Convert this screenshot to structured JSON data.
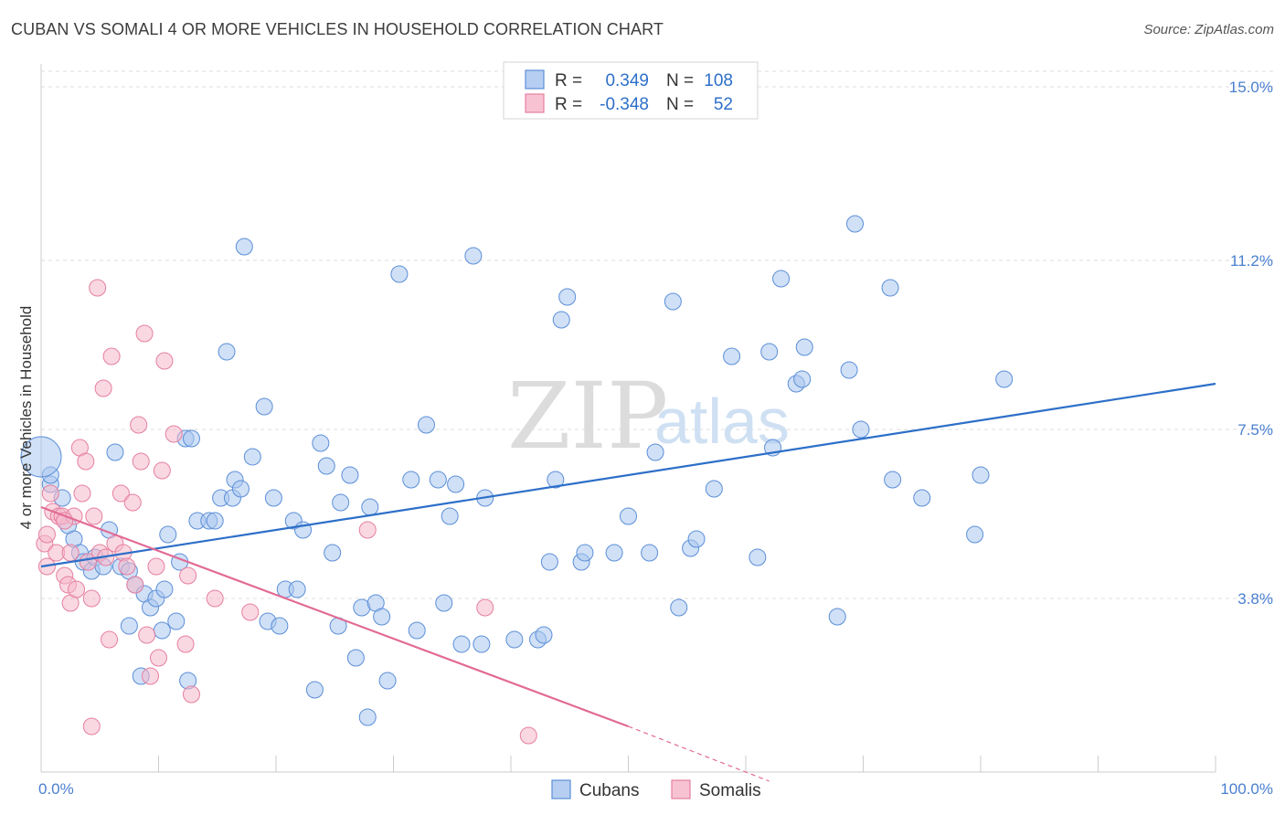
{
  "title": "CUBAN VS SOMALI 4 OR MORE VEHICLES IN HOUSEHOLD CORRELATION CHART",
  "source": "Source: ZipAtlas.com",
  "watermark": {
    "part1": "ZIP",
    "part2": "atlas"
  },
  "legend_top": [
    {
      "r_label": "R =",
      "r_value": "0.349",
      "n_label": "N =",
      "n_value": "108",
      "color": "#a9c6ee",
      "stroke": "#5b8fd8"
    },
    {
      "r_label": "R =",
      "r_value": "-0.348",
      "n_label": "N =",
      "n_value": "52",
      "color": "#f6b8cb",
      "stroke": "#e57fa0"
    }
  ],
  "chart_data": {
    "type": "scatter",
    "title": "CUBAN VS SOMALI 4 OR MORE VEHICLES IN HOUSEHOLD CORRELATION CHART",
    "xlabel": "",
    "ylabel": "4 or more Vehicles in Household",
    "xlim": [
      0,
      100
    ],
    "ylim": [
      0,
      15.5
    ],
    "x_tick_labels": [
      "0.0%",
      "100.0%"
    ],
    "y_ticks": [
      3.8,
      7.5,
      11.2,
      15.0
    ],
    "y_tick_labels": [
      "3.8%",
      "7.5%",
      "11.2%",
      "15.0%"
    ],
    "grid": true,
    "legend_bottom": [
      "Cubans",
      "Somalis"
    ],
    "series": [
      {
        "name": "Cubans",
        "color": "#a9c6ee",
        "stroke": "#5b8fd8",
        "line_color": "#2d6fc8",
        "trend": {
          "x": [
            0,
            100
          ],
          "y": [
            4.5,
            8.5
          ]
        },
        "points": [
          [
            0.8,
            6.3
          ],
          [
            0.8,
            6.5
          ],
          [
            1.8,
            6.0
          ],
          [
            2.3,
            5.4
          ],
          [
            2.8,
            5.1
          ],
          [
            3.3,
            4.8
          ],
          [
            3.6,
            4.6
          ],
          [
            4.3,
            4.4
          ],
          [
            4.6,
            4.7
          ],
          [
            5.3,
            4.5
          ],
          [
            5.8,
            5.3
          ],
          [
            6.3,
            7.0
          ],
          [
            6.8,
            4.5
          ],
          [
            7.5,
            4.4
          ],
          [
            7.5,
            3.2
          ],
          [
            8.0,
            4.1
          ],
          [
            8.5,
            2.1
          ],
          [
            8.8,
            3.9
          ],
          [
            9.3,
            3.6
          ],
          [
            9.8,
            3.8
          ],
          [
            10.3,
            3.1
          ],
          [
            10.5,
            4.0
          ],
          [
            10.8,
            5.2
          ],
          [
            11.5,
            3.3
          ],
          [
            11.8,
            4.6
          ],
          [
            12.3,
            7.3
          ],
          [
            12.5,
            2.0
          ],
          [
            12.8,
            7.3
          ],
          [
            13.3,
            5.5
          ],
          [
            14.3,
            5.5
          ],
          [
            14.8,
            5.5
          ],
          [
            15.3,
            6.0
          ],
          [
            15.8,
            9.2
          ],
          [
            16.3,
            6.0
          ],
          [
            16.5,
            6.4
          ],
          [
            17.0,
            6.2
          ],
          [
            17.3,
            11.5
          ],
          [
            18.0,
            6.9
          ],
          [
            19.0,
            8.0
          ],
          [
            19.3,
            3.3
          ],
          [
            19.8,
            6.0
          ],
          [
            20.3,
            3.2
          ],
          [
            20.8,
            4.0
          ],
          [
            21.5,
            5.5
          ],
          [
            21.8,
            4.0
          ],
          [
            22.3,
            5.3
          ],
          [
            23.3,
            1.8
          ],
          [
            23.8,
            7.2
          ],
          [
            24.3,
            6.7
          ],
          [
            24.8,
            4.8
          ],
          [
            25.3,
            3.2
          ],
          [
            25.5,
            5.9
          ],
          [
            26.3,
            6.5
          ],
          [
            26.8,
            2.5
          ],
          [
            27.3,
            3.6
          ],
          [
            27.8,
            1.2
          ],
          [
            28.0,
            5.8
          ],
          [
            28.5,
            3.7
          ],
          [
            29.0,
            3.4
          ],
          [
            29.5,
            2.0
          ],
          [
            30.5,
            10.9
          ],
          [
            31.5,
            6.4
          ],
          [
            32.0,
            3.1
          ],
          [
            32.8,
            7.6
          ],
          [
            33.8,
            6.4
          ],
          [
            34.3,
            3.7
          ],
          [
            34.8,
            5.6
          ],
          [
            35.3,
            6.3
          ],
          [
            35.8,
            2.8
          ],
          [
            36.8,
            11.3
          ],
          [
            37.5,
            2.8
          ],
          [
            37.8,
            6.0
          ],
          [
            40.3,
            2.9
          ],
          [
            42.3,
            2.9
          ],
          [
            42.8,
            3.0
          ],
          [
            43.3,
            4.6
          ],
          [
            43.8,
            6.4
          ],
          [
            44.3,
            9.9
          ],
          [
            44.8,
            10.4
          ],
          [
            46.0,
            4.6
          ],
          [
            46.3,
            4.8
          ],
          [
            48.8,
            4.8
          ],
          [
            50.0,
            5.6
          ],
          [
            51.8,
            4.8
          ],
          [
            52.3,
            7.0
          ],
          [
            53.8,
            10.3
          ],
          [
            54.3,
            3.6
          ],
          [
            55.3,
            4.9
          ],
          [
            55.8,
            5.1
          ],
          [
            57.3,
            6.2
          ],
          [
            58.8,
            9.1
          ],
          [
            61.0,
            4.7
          ],
          [
            62.0,
            9.2
          ],
          [
            62.3,
            7.1
          ],
          [
            63.0,
            10.8
          ],
          [
            64.3,
            8.5
          ],
          [
            64.8,
            8.6
          ],
          [
            65.0,
            9.3
          ],
          [
            67.8,
            3.4
          ],
          [
            68.8,
            8.8
          ],
          [
            69.3,
            12.0
          ],
          [
            69.8,
            7.5
          ],
          [
            72.3,
            10.6
          ],
          [
            72.5,
            6.4
          ],
          [
            75.0,
            6.0
          ],
          [
            79.5,
            5.2
          ],
          [
            80.0,
            6.5
          ],
          [
            82.0,
            8.6
          ]
        ]
      },
      {
        "name": "Somalis",
        "color": "#f6b8cb",
        "stroke": "#e57fa0",
        "line_color": "#e26a95",
        "trend": {
          "x": [
            0,
            50
          ],
          "y": [
            5.8,
            1.0
          ]
        },
        "trend_ext": {
          "x": [
            50,
            62
          ],
          "y": [
            1.0,
            -0.2
          ]
        },
        "points": [
          [
            0.3,
            5.0
          ],
          [
            0.5,
            5.2
          ],
          [
            0.8,
            6.1
          ],
          [
            1.0,
            5.7
          ],
          [
            1.3,
            4.8
          ],
          [
            1.5,
            5.6
          ],
          [
            1.8,
            5.6
          ],
          [
            2.0,
            4.3
          ],
          [
            2.3,
            4.1
          ],
          [
            2.5,
            4.8
          ],
          [
            2.5,
            3.7
          ],
          [
            2.8,
            5.6
          ],
          [
            3.0,
            4.0
          ],
          [
            3.3,
            7.1
          ],
          [
            3.5,
            6.1
          ],
          [
            3.8,
            6.8
          ],
          [
            4.0,
            4.6
          ],
          [
            4.3,
            3.8
          ],
          [
            4.3,
            1.0
          ],
          [
            4.5,
            5.6
          ],
          [
            4.8,
            10.6
          ],
          [
            5.0,
            4.8
          ],
          [
            5.3,
            8.4
          ],
          [
            5.5,
            4.7
          ],
          [
            5.8,
            2.9
          ],
          [
            6.3,
            5.0
          ],
          [
            6.8,
            6.1
          ],
          [
            7.0,
            4.8
          ],
          [
            7.3,
            4.5
          ],
          [
            7.8,
            5.9
          ],
          [
            8.0,
            4.1
          ],
          [
            8.3,
            7.6
          ],
          [
            8.5,
            6.8
          ],
          [
            8.8,
            9.6
          ],
          [
            9.0,
            3.0
          ],
          [
            9.3,
            2.1
          ],
          [
            9.8,
            4.5
          ],
          [
            10.0,
            2.5
          ],
          [
            10.3,
            6.6
          ],
          [
            10.5,
            9.0
          ],
          [
            11.3,
            7.4
          ],
          [
            12.3,
            2.8
          ],
          [
            12.5,
            4.3
          ],
          [
            12.8,
            1.7
          ],
          [
            14.8,
            3.8
          ],
          [
            17.8,
            3.5
          ],
          [
            27.8,
            5.3
          ],
          [
            37.8,
            3.6
          ],
          [
            41.5,
            0.8
          ],
          [
            2.0,
            5.5
          ],
          [
            0.5,
            4.5
          ],
          [
            6.0,
            9.1
          ]
        ]
      }
    ]
  }
}
